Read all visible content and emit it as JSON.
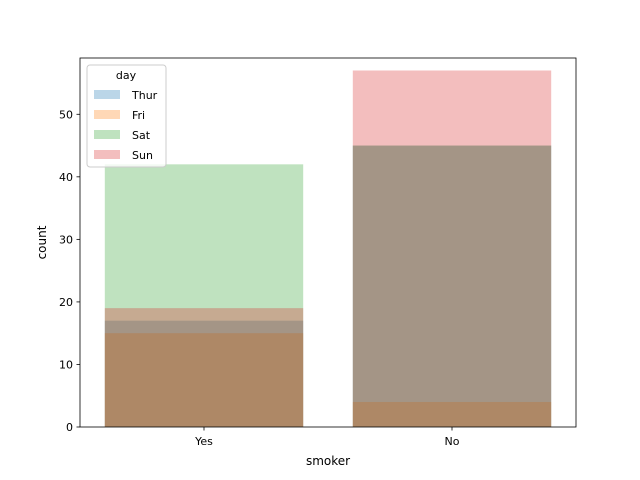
{
  "chart_data": {
    "type": "bar",
    "layout": "overlay",
    "categories": [
      "Yes",
      "No"
    ],
    "xlabel": "smoker",
    "ylabel": "count",
    "ylim": [
      0,
      59
    ],
    "yticks": [
      0,
      10,
      20,
      30,
      40,
      50
    ],
    "bar_alpha": 0.3,
    "series": [
      {
        "name": "Thur",
        "color": "#1f77b4",
        "values": [
          17,
          45
        ]
      },
      {
        "name": "Fri",
        "color": "#ff7f0e",
        "values": [
          15,
          4
        ]
      },
      {
        "name": "Sat",
        "color": "#2ca02c",
        "values": [
          42,
          45
        ]
      },
      {
        "name": "Sun",
        "color": "#d62728",
        "values": [
          19,
          57
        ]
      }
    ],
    "legend": {
      "title": "day",
      "placement": "top-left"
    },
    "grid": false
  }
}
